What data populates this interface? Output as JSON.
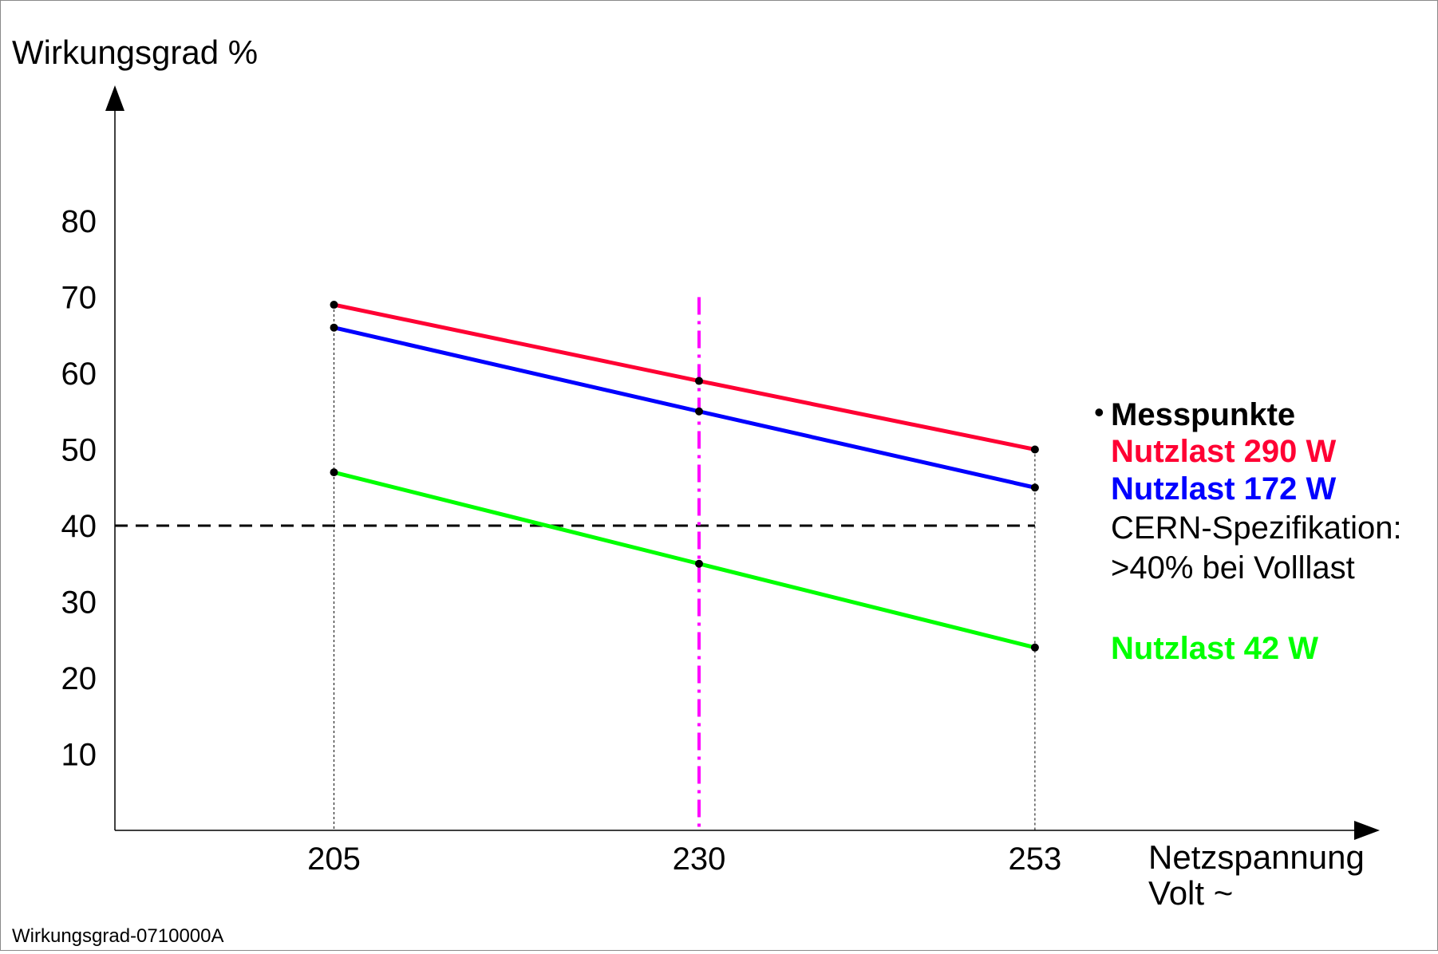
{
  "chart_data": {
    "type": "line",
    "ylabel": "Wirkungsgrad %",
    "xlabel_line1": "Netzspannung",
    "xlabel_line2": "Volt ~",
    "footer_id": "Wirkungsgrad-0710000A",
    "y_ticks": [
      "10",
      "20",
      "30",
      "40",
      "50",
      "60",
      "70",
      "80"
    ],
    "ylim": [
      0,
      80
    ],
    "x_ticks": [
      {
        "label": "205",
        "value": 205,
        "color": "#000000"
      },
      {
        "label": "230",
        "value": 230,
        "color": "#ff00ff"
      },
      {
        "label": "253",
        "value": 253,
        "color": "#000000"
      }
    ],
    "xlim": [
      190,
      270
    ],
    "series": [
      {
        "name": "Nutzlast 290 W",
        "color": "#ff0033",
        "x": [
          205,
          230,
          253
        ],
        "values": [
          69,
          59,
          50
        ]
      },
      {
        "name": "Nutzlast 172 W",
        "color": "#0000ff",
        "x": [
          205,
          230,
          253
        ],
        "values": [
          66,
          55,
          45
        ]
      },
      {
        "name": "Nutzlast 42 W",
        "color": "#00ff00",
        "x": [
          205,
          230,
          253
        ],
        "values": [
          47,
          35,
          24
        ]
      }
    ],
    "reference_line": {
      "value": 40,
      "color": "#000000",
      "style": "dashed"
    },
    "nominal_voltage_line": {
      "value": 230,
      "color": "#ff00ff",
      "style": "dash-dot"
    },
    "legend": {
      "bullet": "•",
      "measure_label": "Messpunkte",
      "cern_line1": "CERN-Spezifikation:",
      "cern_line2": ">40% bei Volllast",
      "placement": "right"
    },
    "grid": false
  }
}
